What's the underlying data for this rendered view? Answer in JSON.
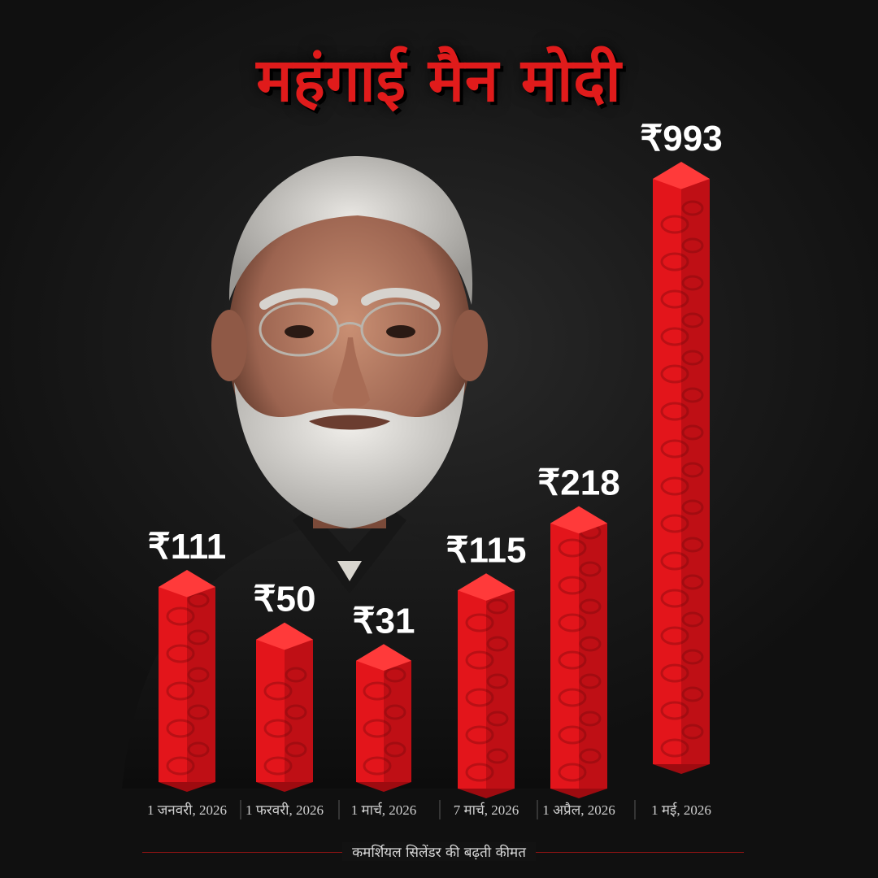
{
  "headline": "महंगाई मैन मोदी",
  "caption": "कमर्शियल  सिलेंडर की बढ़ती कीमत",
  "colors": {
    "accent": "#e01b1b",
    "bar": "#e3151b",
    "background": "#141414"
  },
  "chart_data": {
    "type": "bar",
    "categories": [
      "1 जनवरी, 2026",
      "1 फरवरी, 2026",
      "1 मार्च, 2026",
      "7 मार्च, 2026",
      "1 अप्रैल, 2026",
      "1 मई, 2026"
    ],
    "values": [
      111,
      50,
      31,
      115,
      218,
      993
    ],
    "value_labels": [
      "₹111",
      "₹50",
      "₹31",
      "₹115",
      "₹218",
      "₹993"
    ],
    "title": "महंगाई मैन मोदी",
    "xlabel": "",
    "ylabel": "",
    "grid": false
  }
}
